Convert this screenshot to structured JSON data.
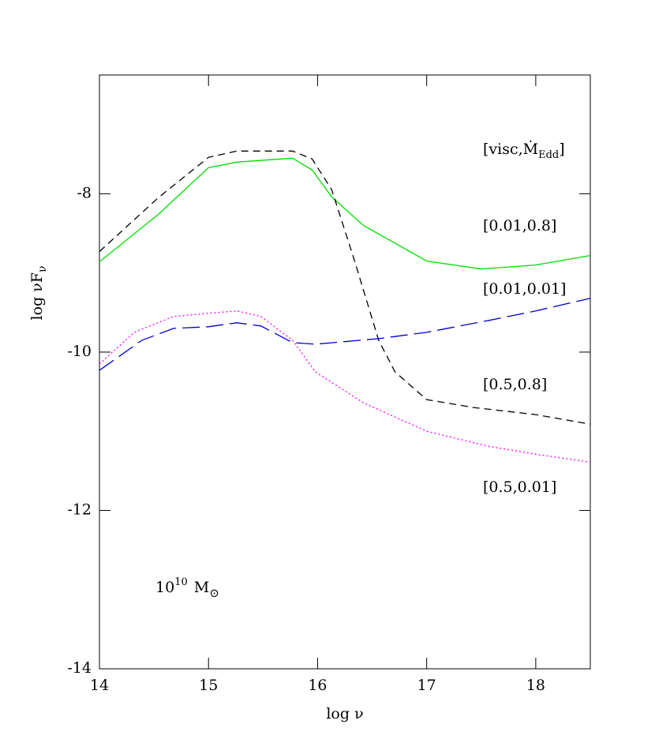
{
  "chart_data": {
    "type": "line",
    "xlabel": "log ν",
    "ylabel": {
      "text": "log νF",
      "sub": "ν"
    },
    "xlim": [
      14,
      18.5
    ],
    "xticks": [
      14,
      15,
      16,
      17,
      18
    ],
    "ylim": [
      -14,
      -6.5
    ],
    "yticks": [
      -14,
      -12,
      -10,
      -8
    ],
    "legend_title": {
      "text": "[visc,Ṁ",
      "sub": "Edd",
      "end": "]"
    },
    "annotation": {
      "base": "10",
      "exponent": "10",
      "symbol": "M",
      "sub": "⊙"
    },
    "series": [
      {
        "name": "[0.01,0.8]",
        "color": "#00dd00",
        "dash": "solid",
        "x": [
          14,
          14.54,
          15,
          15.26,
          15.77,
          15.95,
          16.13,
          16.42,
          17,
          17.5,
          18,
          18.5
        ],
        "values": [
          -8.86,
          -8.26,
          -7.67,
          -7.6,
          -7.55,
          -7.7,
          -8.04,
          -8.4,
          -8.85,
          -8.95,
          -8.9,
          -8.78
        ]
      },
      {
        "name": "[0.01,0.01]",
        "color": "#0000cc",
        "dash": "long",
        "x": [
          14,
          14.39,
          14.68,
          15,
          15.26,
          15.48,
          15.77,
          15.98,
          16.56,
          17,
          17.57,
          18,
          18.5
        ],
        "values": [
          -10.23,
          -9.85,
          -9.7,
          -9.68,
          -9.63,
          -9.67,
          -9.88,
          -9.9,
          -9.83,
          -9.75,
          -9.6,
          -9.48,
          -9.32
        ]
      },
      {
        "name": "[0.5,0.8]",
        "color": "#000000",
        "dash": "short",
        "x": [
          14,
          14.54,
          15,
          15.26,
          15.77,
          15.95,
          16.13,
          16.34,
          16.56,
          16.71,
          17,
          17.43,
          18,
          18.5
        ],
        "values": [
          -8.73,
          -8.05,
          -7.54,
          -7.46,
          -7.46,
          -7.56,
          -7.95,
          -8.85,
          -9.85,
          -10.25,
          -10.6,
          -10.7,
          -10.79,
          -10.91
        ]
      },
      {
        "name": "[0.5,0.01]",
        "color": "#ff00ff",
        "dash": "dotted",
        "x": [
          14,
          14.32,
          14.68,
          15,
          15.26,
          15.48,
          15.77,
          15.98,
          16.42,
          17,
          17.57,
          18,
          18.5
        ],
        "values": [
          -10.15,
          -9.75,
          -9.55,
          -9.51,
          -9.48,
          -9.55,
          -9.85,
          -10.25,
          -10.64,
          -11.0,
          -11.19,
          -11.29,
          -11.39
        ]
      }
    ]
  }
}
